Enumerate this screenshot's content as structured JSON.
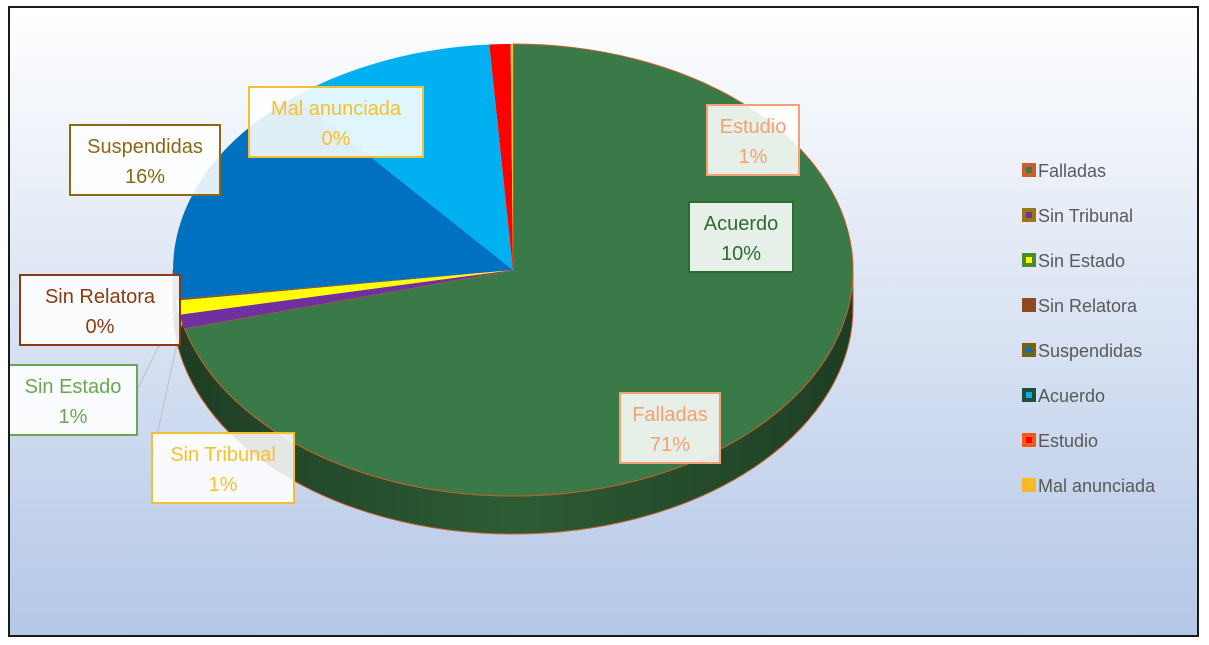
{
  "chart_data": {
    "type": "pie",
    "title": "",
    "slices": [
      {
        "name": "Falladas",
        "value": 71,
        "label_name": "Falladas",
        "label_pct": "71%",
        "color": "#3a7a48",
        "legend_marker": "#c8602a",
        "label_color": "#f4a070"
      },
      {
        "name": "Sin Tribunal",
        "value": 1,
        "label_name": "Sin Tribunal",
        "label_pct": "1%",
        "color": "#7030a0",
        "legend_marker": "#9b7616",
        "label_color": "#f7c02a"
      },
      {
        "name": "Sin Estado",
        "value": 1,
        "label_name": "Sin Estado",
        "label_pct": "1%",
        "color": "#ffff00",
        "legend_marker": "#4f8a2c",
        "label_color": "#6aa84f"
      },
      {
        "name": "Sin Relatora",
        "value": 0,
        "label_name": "Sin Relatora",
        "label_pct": "0%",
        "color": "#8b4a20",
        "legend_marker": "#8b4a20",
        "label_color": "#8b3a12"
      },
      {
        "name": "Suspendidas",
        "value": 16,
        "label_name": "Suspendidas",
        "label_pct": "16%",
        "color": "#0070c0",
        "legend_marker": "#7f6000",
        "label_color": "#8b6914"
      },
      {
        "name": "Acuerdo",
        "value": 10,
        "label_name": "Acuerdo",
        "label_pct": "10%",
        "color": "#00b0f0",
        "legend_marker": "#1f4e3d",
        "label_color": "#2e6b30"
      },
      {
        "name": "Estudio",
        "value": 1,
        "label_name": "Estudio",
        "label_pct": "1%",
        "color": "#ff0000",
        "legend_marker": "#f05a1a",
        "label_color": "#f4a070"
      },
      {
        "name": "Mal anunciada",
        "value": 0,
        "label_name": "Mal anunciada",
        "label_pct": "0%",
        "color": "#f0c030",
        "legend_marker": "#f7b820",
        "label_color": "#f7c02a"
      }
    ],
    "legend": {
      "position": "right",
      "items": [
        "Falladas",
        "Sin Tribunal",
        "Sin Estado",
        "Sin Relatora",
        "Suspendidas",
        "Acuerdo",
        "Estudio",
        "Mal anunciada"
      ]
    },
    "style": "3d-pie",
    "background": [
      "#ffffff",
      "#b4c7e7"
    ]
  }
}
